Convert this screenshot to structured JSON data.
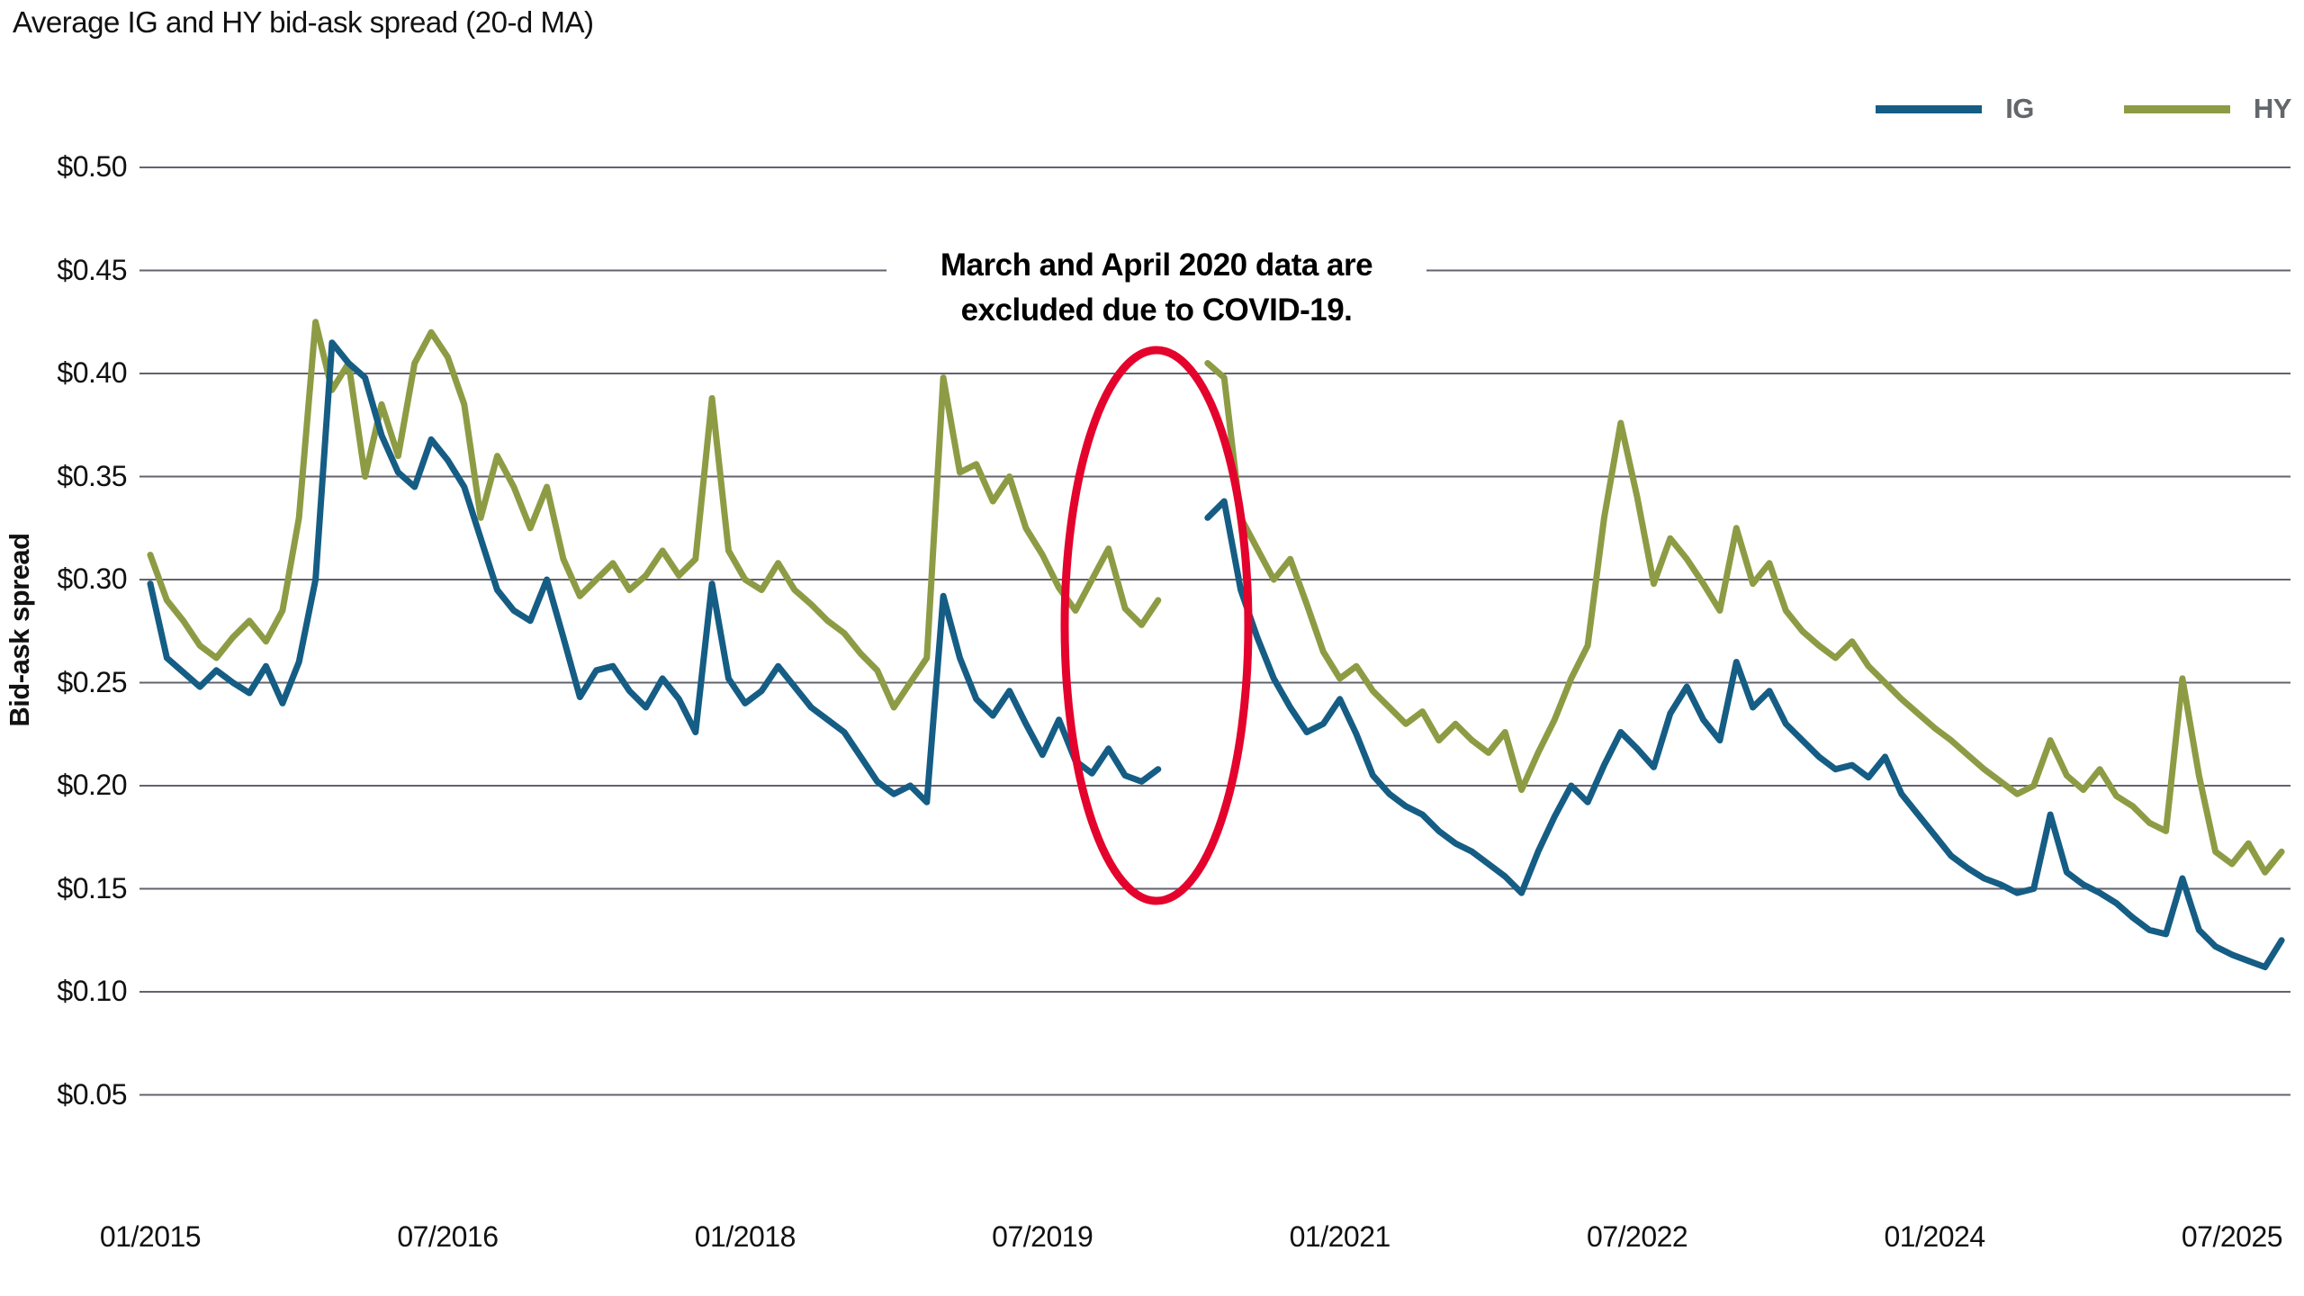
{
  "chart_data": {
    "type": "line",
    "title": "Average IG and HY bid-ask spread (20-d MA)",
    "ylabel": "Bid-ask spread",
    "xlabel": "",
    "grid": "horizontal",
    "legend_position": "top-right",
    "x_start": "2015-01",
    "x_freq": "monthly",
    "x_end": "2025-10",
    "excluded_months": [
      "2020-03",
      "2020-04"
    ],
    "x_tick_labels": [
      "01/2015",
      "07/2016",
      "01/2018",
      "07/2019",
      "01/2021",
      "07/2022",
      "01/2024",
      "07/2025"
    ],
    "x_tick_month_index": [
      0,
      18,
      36,
      54,
      72,
      90,
      108,
      126
    ],
    "y_ticks": [
      0.5,
      0.45,
      0.4,
      0.35,
      0.3,
      0.25,
      0.2,
      0.15,
      0.1,
      0.05
    ],
    "y_tick_labels": [
      "$0.50",
      "$0.45",
      "$0.40",
      "$0.35",
      "$0.30",
      "$0.25",
      "$0.20",
      "$0.15",
      "$0.10",
      "$0.05"
    ],
    "ylim": [
      0.05,
      0.5
    ],
    "colors": {
      "ig_line": "#155D84",
      "hy_line": "#8D9C44",
      "gridline": "#63636E",
      "highlight_ellipse": "#E4032C",
      "axis_text": "#111111",
      "legend_text": "#63666A",
      "annotation_text": "#000000",
      "annotation_background": "#FFFFFF"
    },
    "series": [
      {
        "name": "IG",
        "color": "#155D84",
        "values": [
          0.298,
          0.262,
          0.255,
          0.248,
          0.256,
          0.25,
          0.245,
          0.258,
          0.24,
          0.26,
          0.3,
          0.415,
          0.405,
          0.398,
          0.37,
          0.352,
          0.345,
          0.368,
          0.358,
          0.345,
          0.32,
          0.295,
          0.285,
          0.28,
          0.3,
          0.272,
          0.243,
          0.256,
          0.258,
          0.246,
          0.238,
          0.252,
          0.242,
          0.226,
          0.298,
          0.252,
          0.24,
          0.246,
          0.258,
          0.248,
          0.238,
          0.232,
          0.226,
          0.214,
          0.202,
          0.196,
          0.2,
          0.192,
          0.292,
          0.262,
          0.242,
          0.234,
          0.246,
          0.23,
          0.215,
          0.232,
          0.212,
          0.206,
          0.218,
          0.205,
          0.202,
          0.208,
          null,
          null,
          0.33,
          0.338,
          0.295,
          0.272,
          0.252,
          0.238,
          0.226,
          0.23,
          0.242,
          0.225,
          0.205,
          0.196,
          0.19,
          0.186,
          0.178,
          0.172,
          0.168,
          0.162,
          0.156,
          0.148,
          0.168,
          0.185,
          0.2,
          0.192,
          0.21,
          0.226,
          0.218,
          0.209,
          0.235,
          0.248,
          0.232,
          0.222,
          0.26,
          0.238,
          0.246,
          0.23,
          0.222,
          0.214,
          0.208,
          0.21,
          0.204,
          0.214,
          0.196,
          0.186,
          0.176,
          0.166,
          0.16,
          0.155,
          0.152,
          0.148,
          0.15,
          0.186,
          0.158,
          0.152,
          0.148,
          0.143,
          0.136,
          0.13,
          0.128,
          0.155,
          0.13,
          0.122,
          0.118,
          0.115,
          0.112,
          0.125
        ]
      },
      {
        "name": "HY",
        "color": "#8D9C44",
        "values": [
          0.312,
          0.29,
          0.28,
          0.268,
          0.262,
          0.272,
          0.28,
          0.27,
          0.285,
          0.33,
          0.425,
          0.392,
          0.405,
          0.35,
          0.385,
          0.36,
          0.405,
          0.42,
          0.408,
          0.385,
          0.33,
          0.36,
          0.345,
          0.325,
          0.345,
          0.31,
          0.292,
          0.3,
          0.308,
          0.295,
          0.302,
          0.314,
          0.302,
          0.31,
          0.388,
          0.314,
          0.3,
          0.295,
          0.308,
          0.295,
          0.288,
          0.28,
          0.274,
          0.264,
          0.256,
          0.238,
          0.25,
          0.262,
          0.398,
          0.352,
          0.356,
          0.338,
          0.35,
          0.325,
          0.312,
          0.296,
          0.285,
          0.3,
          0.315,
          0.286,
          0.278,
          0.29,
          null,
          null,
          0.405,
          0.398,
          0.33,
          0.315,
          0.3,
          0.31,
          0.288,
          0.265,
          0.252,
          0.258,
          0.246,
          0.238,
          0.23,
          0.236,
          0.222,
          0.23,
          0.222,
          0.216,
          0.226,
          0.198,
          0.216,
          0.232,
          0.252,
          0.268,
          0.33,
          0.376,
          0.34,
          0.298,
          0.32,
          0.31,
          0.298,
          0.285,
          0.325,
          0.298,
          0.308,
          0.285,
          0.275,
          0.268,
          0.262,
          0.27,
          0.258,
          0.25,
          0.242,
          0.235,
          0.228,
          0.222,
          0.215,
          0.208,
          0.202,
          0.196,
          0.2,
          0.222,
          0.205,
          0.198,
          0.208,
          0.195,
          0.19,
          0.182,
          0.178,
          0.252,
          0.205,
          0.168,
          0.162,
          0.172,
          0.158,
          0.168
        ]
      }
    ],
    "annotation": {
      "line1": "March and April 2020 data are",
      "line2": "excluded due to COVID-19.",
      "marks": "gap where March and April 2020 data are excluded"
    }
  }
}
